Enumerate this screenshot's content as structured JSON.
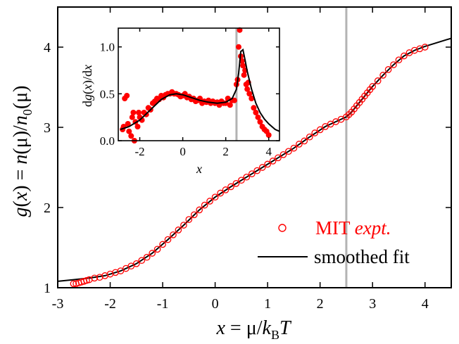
{
  "chart_data": [
    {
      "type": "scatter",
      "panel": "main",
      "xlabel": "x = μ/k_B T",
      "ylabel": "g(x) = n(μ)/n_0(μ)",
      "xlim": [
        -3,
        4.5
      ],
      "ylim": [
        1,
        4.5
      ],
      "x_ticks": [
        -3,
        -2,
        -1,
        0,
        1,
        2,
        3,
        4
      ],
      "y_ticks": [
        1,
        2,
        3,
        4
      ],
      "x_tick_labels": [
        "-3",
        "-2",
        "-1",
        "0",
        "1",
        "2",
        "3",
        "4"
      ],
      "y_tick_labels": [
        "1",
        "2",
        "3",
        "4"
      ],
      "vertical_line_x": 2.5,
      "grid": false,
      "legend_position": "bottom-right",
      "legend": [
        {
          "marker": "open-circle",
          "color": "#ff0000",
          "label_main": "MIT ",
          "label_italic": "expt."
        },
        {
          "marker": "line",
          "color": "#000000",
          "label_main": "smoothed fit",
          "label_italic": ""
        }
      ],
      "series": [
        {
          "name": "MIT expt.",
          "style": "open-circle",
          "color": "#ff0000",
          "x": [
            -2.7,
            -2.65,
            -2.6,
            -2.55,
            -2.5,
            -2.45,
            -2.4,
            -2.3,
            -2.2,
            -2.1,
            -2.0,
            -1.9,
            -1.8,
            -1.7,
            -1.6,
            -1.5,
            -1.4,
            -1.3,
            -1.2,
            -1.1,
            -1.0,
            -0.9,
            -0.8,
            -0.7,
            -0.6,
            -0.5,
            -0.4,
            -0.3,
            -0.2,
            -0.1,
            0.0,
            0.1,
            0.2,
            0.3,
            0.4,
            0.5,
            0.6,
            0.7,
            0.8,
            0.9,
            1.0,
            1.1,
            1.2,
            1.3,
            1.4,
            1.5,
            1.6,
            1.7,
            1.8,
            1.9,
            2.0,
            2.1,
            2.2,
            2.3,
            2.4,
            2.5,
            2.55,
            2.6,
            2.65,
            2.7,
            2.75,
            2.8,
            2.85,
            2.9,
            2.95,
            3.0,
            3.1,
            3.2,
            3.3,
            3.4,
            3.5,
            3.6,
            3.7,
            3.8,
            3.9,
            4.0
          ],
          "y": [
            1.05,
            1.05,
            1.06,
            1.07,
            1.08,
            1.09,
            1.1,
            1.12,
            1.13,
            1.15,
            1.17,
            1.19,
            1.21,
            1.24,
            1.27,
            1.3,
            1.34,
            1.38,
            1.43,
            1.48,
            1.54,
            1.6,
            1.66,
            1.72,
            1.78,
            1.85,
            1.91,
            1.97,
            2.03,
            2.08,
            2.13,
            2.18,
            2.22,
            2.26,
            2.3,
            2.34,
            2.38,
            2.42,
            2.46,
            2.5,
            2.54,
            2.58,
            2.62,
            2.66,
            2.7,
            2.74,
            2.79,
            2.83,
            2.88,
            2.93,
            2.97,
            3.01,
            3.04,
            3.07,
            3.1,
            3.13,
            3.16,
            3.19,
            3.23,
            3.27,
            3.31,
            3.35,
            3.39,
            3.43,
            3.47,
            3.51,
            3.58,
            3.65,
            3.72,
            3.78,
            3.84,
            3.89,
            3.93,
            3.96,
            3.98,
            4.0
          ]
        },
        {
          "name": "smoothed fit",
          "style": "line",
          "color": "#000000",
          "x": [
            -3.0,
            -2.7,
            -2.4,
            -2.1,
            -1.8,
            -1.5,
            -1.2,
            -0.9,
            -0.6,
            -0.3,
            0.0,
            0.3,
            0.6,
            0.9,
            1.2,
            1.5,
            1.8,
            2.1,
            2.3,
            2.5,
            2.6,
            2.7,
            2.8,
            2.9,
            3.0,
            3.2,
            3.4,
            3.6,
            3.8,
            4.0,
            4.2,
            4.4,
            4.5
          ],
          "y": [
            1.08,
            1.1,
            1.12,
            1.15,
            1.21,
            1.3,
            1.43,
            1.6,
            1.78,
            1.97,
            2.13,
            2.26,
            2.38,
            2.5,
            2.62,
            2.74,
            2.88,
            3.01,
            3.07,
            3.13,
            3.19,
            3.27,
            3.35,
            3.43,
            3.51,
            3.65,
            3.78,
            3.89,
            3.96,
            4.01,
            4.05,
            4.09,
            4.11
          ]
        }
      ]
    },
    {
      "type": "scatter",
      "panel": "inset",
      "xlabel": "x",
      "ylabel": "dg(x)/dx",
      "xlim": [
        -3,
        4.5
      ],
      "ylim": [
        0,
        1.2
      ],
      "x_ticks": [
        -2,
        0,
        2,
        4
      ],
      "y_ticks": [
        0.0,
        0.5,
        1.0
      ],
      "x_tick_labels": [
        "-2",
        "0",
        "2",
        "4"
      ],
      "y_tick_labels": [
        "0.0",
        "0.5",
        "1.0"
      ],
      "vertical_line_x": 2.5,
      "series": [
        {
          "name": "MIT expt.",
          "style": "filled-circle",
          "color": "#ff0000",
          "x": [
            -2.8,
            -2.75,
            -2.7,
            -2.6,
            -2.55,
            -2.5,
            -2.4,
            -2.35,
            -2.3,
            -2.25,
            -2.2,
            -2.1,
            -2.05,
            -2.0,
            -1.9,
            -1.8,
            -1.7,
            -1.6,
            -1.5,
            -1.4,
            -1.3,
            -1.2,
            -1.1,
            -1.0,
            -0.9,
            -0.8,
            -0.7,
            -0.6,
            -0.5,
            -0.4,
            -0.3,
            -0.2,
            -0.1,
            0.0,
            0.1,
            0.2,
            0.3,
            0.4,
            0.5,
            0.6,
            0.7,
            0.8,
            0.9,
            1.0,
            1.1,
            1.2,
            1.3,
            1.4,
            1.5,
            1.6,
            1.7,
            1.8,
            1.9,
            2.0,
            2.1,
            2.2,
            2.3,
            2.4,
            2.5,
            2.55,
            2.6,
            2.65,
            2.7,
            2.75,
            2.8,
            2.85,
            2.9,
            2.95,
            3.0,
            3.05,
            3.1,
            3.2,
            3.3,
            3.4,
            3.5,
            3.6,
            3.7,
            3.8,
            3.9,
            4.0
          ],
          "y": [
            0.12,
            0.15,
            0.45,
            0.48,
            0.18,
            0.1,
            0.05,
            0.25,
            0.3,
            0.0,
            0.2,
            0.15,
            0.3,
            0.25,
            0.22,
            0.3,
            0.28,
            0.35,
            0.33,
            0.4,
            0.42,
            0.45,
            0.44,
            0.48,
            0.46,
            0.49,
            0.5,
            0.5,
            0.52,
            0.5,
            0.5,
            0.49,
            0.47,
            0.48,
            0.5,
            0.46,
            0.47,
            0.44,
            0.45,
            0.42,
            0.43,
            0.45,
            0.4,
            0.42,
            0.41,
            0.43,
            0.4,
            0.42,
            0.4,
            0.41,
            0.38,
            0.42,
            0.4,
            0.4,
            0.45,
            0.38,
            0.43,
            0.43,
            0.6,
            0.65,
            1.0,
            1.18,
            0.9,
            0.85,
            0.8,
            0.7,
            0.75,
            0.6,
            0.55,
            0.62,
            0.5,
            0.45,
            0.35,
            0.3,
            0.25,
            0.2,
            0.15,
            0.12,
            0.1,
            0.06
          ]
        },
        {
          "name": "smoothed fit",
          "style": "line",
          "color": "#000000",
          "x": [
            -2.9,
            -2.5,
            -2.0,
            -1.5,
            -1.0,
            -0.6,
            -0.3,
            0.0,
            0.4,
            0.8,
            1.2,
            1.6,
            2.0,
            2.3,
            2.5,
            2.6,
            2.7,
            2.8,
            2.9,
            3.0,
            3.2,
            3.4,
            3.6,
            3.8,
            4.0,
            4.3,
            4.5
          ],
          "y": [
            0.12,
            0.15,
            0.22,
            0.33,
            0.44,
            0.49,
            0.5,
            0.49,
            0.46,
            0.43,
            0.41,
            0.4,
            0.41,
            0.45,
            0.55,
            0.72,
            0.95,
            0.97,
            0.86,
            0.74,
            0.55,
            0.4,
            0.3,
            0.23,
            0.18,
            0.12,
            0.1
          ]
        }
      ]
    }
  ]
}
